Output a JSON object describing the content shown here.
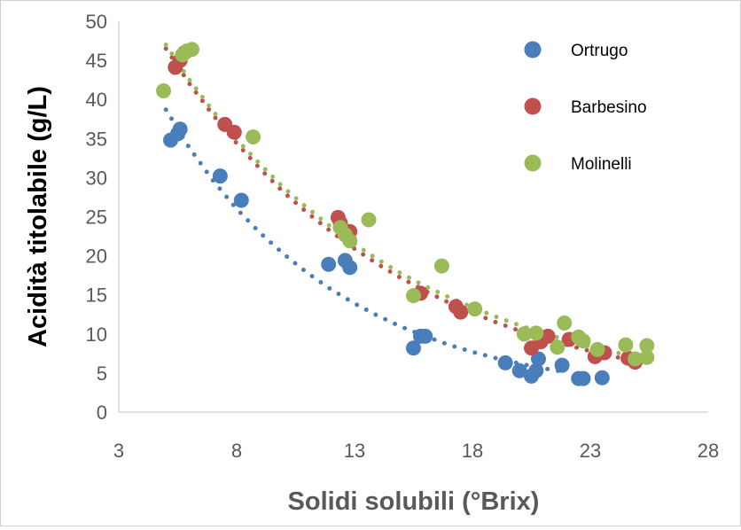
{
  "chart_data": {
    "type": "scatter",
    "title": "",
    "xlabel": "Solidi solubili (°Brix)",
    "ylabel": "Acidità titolabile (g/L)",
    "xlim": [
      3,
      28
    ],
    "ylim": [
      0,
      50
    ],
    "x_ticks": [
      3,
      8,
      13,
      18,
      23,
      28
    ],
    "y_ticks": [
      0,
      5,
      10,
      15,
      20,
      25,
      30,
      35,
      40,
      45,
      50
    ],
    "grid": false,
    "legend_position": "top-right",
    "colors": {
      "axis_text": "#595959",
      "axis_title_x": "#595959",
      "axis_title_y": "#000000",
      "axis_line": "#d9d9d9"
    },
    "trendline": "dotted power fit per series",
    "series": [
      {
        "name": "Ortrugo",
        "color": "#4a7ebb",
        "points": [
          [
            5.2,
            34.8
          ],
          [
            5.5,
            35.6
          ],
          [
            5.6,
            36.2
          ],
          [
            7.3,
            30.2
          ],
          [
            8.2,
            27.1
          ],
          [
            11.9,
            18.9
          ],
          [
            12.6,
            19.4
          ],
          [
            12.8,
            18.5
          ],
          [
            15.5,
            8.2
          ],
          [
            15.8,
            9.7
          ],
          [
            16.0,
            9.7
          ],
          [
            19.4,
            6.3
          ],
          [
            20.0,
            5.3
          ],
          [
            20.5,
            4.6
          ],
          [
            20.7,
            5.3
          ],
          [
            20.8,
            6.8
          ],
          [
            21.8,
            6.0
          ],
          [
            22.5,
            4.3
          ],
          [
            22.7,
            4.3
          ],
          [
            23.5,
            4.4
          ]
        ],
        "trend": [
          [
            5.0,
            38.7
          ],
          [
            6,
            33.8
          ],
          [
            7,
            29.6
          ],
          [
            8,
            26.0
          ],
          [
            9,
            22.9
          ],
          [
            10,
            20.2
          ],
          [
            11,
            17.8
          ],
          [
            12,
            15.7
          ],
          [
            13,
            13.9
          ],
          [
            14,
            12.3
          ],
          [
            15,
            10.9
          ],
          [
            16,
            9.7
          ],
          [
            17,
            8.6
          ],
          [
            18,
            7.7
          ],
          [
            19,
            6.9
          ],
          [
            20,
            6.2
          ],
          [
            21,
            5.6
          ],
          [
            22,
            5.1
          ]
        ]
      },
      {
        "name": "Barbesino",
        "color": "#c0504d",
        "points": [
          [
            5.4,
            44.1
          ],
          [
            5.6,
            45.0
          ],
          [
            5.8,
            46.0
          ],
          [
            7.5,
            36.8
          ],
          [
            7.9,
            35.8
          ],
          [
            12.3,
            24.9
          ],
          [
            12.4,
            24.2
          ],
          [
            12.8,
            23.1
          ],
          [
            15.8,
            15.2
          ],
          [
            17.3,
            13.5
          ],
          [
            17.5,
            12.8
          ],
          [
            20.2,
            10.0
          ],
          [
            20.5,
            8.2
          ],
          [
            20.9,
            9.0
          ],
          [
            21.2,
            9.7
          ],
          [
            22.1,
            9.3
          ],
          [
            23.2,
            7.1
          ],
          [
            23.6,
            7.6
          ],
          [
            24.6,
            6.9
          ],
          [
            24.9,
            6.4
          ]
        ],
        "trend": [
          [
            5.0,
            46.5
          ],
          [
            6,
            42.0
          ],
          [
            7,
            38.0
          ],
          [
            8,
            34.4
          ],
          [
            9,
            31.1
          ],
          [
            10,
            28.1
          ],
          [
            11,
            25.5
          ],
          [
            12,
            23.1
          ],
          [
            13,
            20.9
          ],
          [
            14,
            18.9
          ],
          [
            15,
            17.1
          ],
          [
            16,
            15.5
          ],
          [
            17,
            14.0
          ],
          [
            18,
            12.7
          ],
          [
            19,
            11.5
          ],
          [
            20,
            10.4
          ],
          [
            21,
            9.5
          ],
          [
            22,
            8.6
          ],
          [
            23,
            7.8
          ],
          [
            24,
            7.1
          ],
          [
            25,
            6.5
          ]
        ]
      },
      {
        "name": "Molinelli",
        "color": "#9bbb59",
        "points": [
          [
            4.9,
            41.1
          ],
          [
            5.7,
            45.7
          ],
          [
            5.9,
            46.2
          ],
          [
            6.1,
            46.4
          ],
          [
            8.7,
            35.2
          ],
          [
            12.4,
            23.6
          ],
          [
            12.6,
            22.7
          ],
          [
            12.8,
            21.9
          ],
          [
            13.6,
            24.6
          ],
          [
            15.5,
            14.9
          ],
          [
            16.7,
            18.7
          ],
          [
            18.1,
            13.2
          ],
          [
            20.2,
            10.0
          ],
          [
            20.7,
            10.1
          ],
          [
            21.6,
            8.3
          ],
          [
            21.9,
            11.4
          ],
          [
            22.5,
            9.6
          ],
          [
            22.7,
            9.1
          ],
          [
            23.3,
            8.0
          ],
          [
            24.5,
            8.6
          ],
          [
            24.9,
            6.8
          ],
          [
            25.4,
            8.5
          ],
          [
            25.4,
            7.0
          ]
        ],
        "trend": [
          [
            5.0,
            47.0
          ],
          [
            6,
            42.5
          ],
          [
            7,
            38.5
          ],
          [
            8,
            34.9
          ],
          [
            9,
            31.7
          ],
          [
            10,
            28.7
          ],
          [
            11,
            26.1
          ],
          [
            12,
            23.7
          ],
          [
            13,
            21.5
          ],
          [
            14,
            19.5
          ],
          [
            15,
            17.7
          ],
          [
            16,
            16.1
          ],
          [
            17,
            14.7
          ],
          [
            18,
            13.4
          ],
          [
            19,
            12.2
          ],
          [
            20,
            11.1
          ],
          [
            21,
            10.1
          ],
          [
            22,
            9.2
          ],
          [
            23,
            8.4
          ],
          [
            24,
            7.7
          ],
          [
            25,
            7.0
          ]
        ]
      }
    ]
  }
}
